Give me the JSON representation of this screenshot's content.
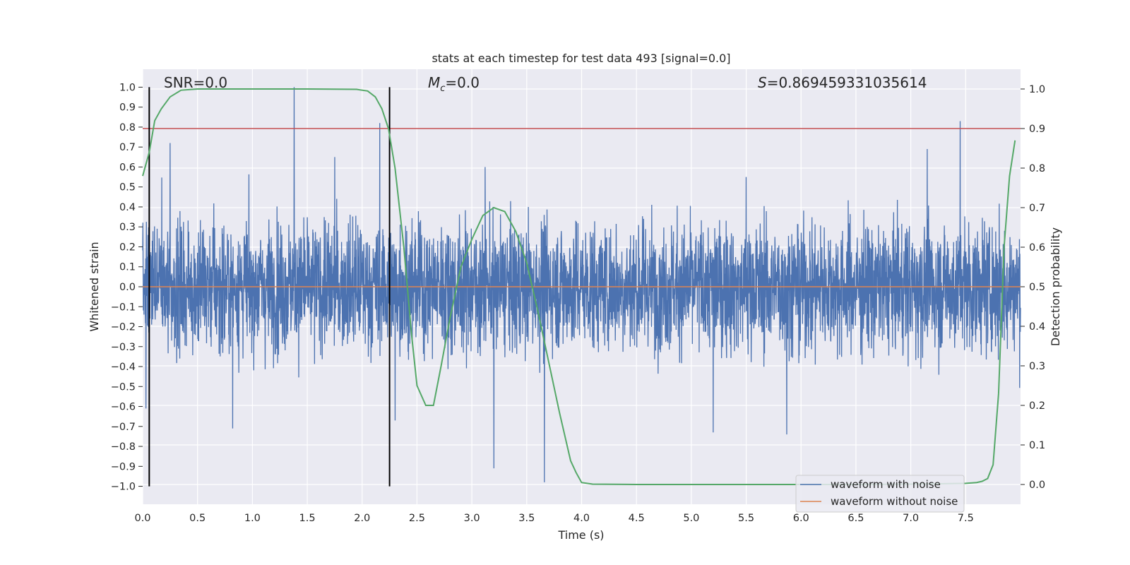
{
  "chart_data": {
    "type": "line",
    "title": "stats at each timestep for test data 493 [signal=0.0]",
    "xlabel": "Time (s)",
    "ylabel": "Whitened strain",
    "ylabel_right": "Detection probability",
    "xlim": [
      0.0,
      8.0
    ],
    "ylim": [
      -1.09,
      1.09
    ],
    "ylim_right": [
      -0.05,
      1.05
    ],
    "x_ticks": [
      0.0,
      0.5,
      1.0,
      1.5,
      2.0,
      2.5,
      3.0,
      3.5,
      4.0,
      4.5,
      5.0,
      5.5,
      6.0,
      6.5,
      7.0,
      7.5
    ],
    "x_tick_labels": [
      "0.0",
      "0.5",
      "1.0",
      "1.5",
      "2.0",
      "2.5",
      "3.0",
      "3.5",
      "4.0",
      "4.5",
      "5.0",
      "5.5",
      "6.0",
      "6.5",
      "7.0",
      "7.5"
    ],
    "y_ticks": [
      -1.0,
      -0.9,
      -0.8,
      -0.7,
      -0.6,
      -0.5,
      -0.4,
      -0.3,
      -0.2,
      -0.1,
      0.0,
      0.1,
      0.2,
      0.3,
      0.4,
      0.5,
      0.6,
      0.7,
      0.8,
      0.9,
      1.0
    ],
    "y_tick_labels": [
      "−1.0",
      "−0.9",
      "−0.8",
      "−0.7",
      "−0.6",
      "−0.5",
      "−0.4",
      "−0.3",
      "−0.2",
      "−0.1",
      "0.0",
      "0.1",
      "0.2",
      "0.3",
      "0.4",
      "0.5",
      "0.6",
      "0.7",
      "0.8",
      "0.9",
      "1.0"
    ],
    "y_ticks_right": [
      0.0,
      0.1,
      0.2,
      0.3,
      0.4,
      0.5,
      0.6,
      0.7,
      0.8,
      0.9,
      1.0
    ],
    "y_tick_labels_right": [
      "0.0",
      "0.1",
      "0.2",
      "0.3",
      "0.4",
      "0.5",
      "0.6",
      "0.7",
      "0.8",
      "0.9",
      "1.0"
    ],
    "grid": true,
    "legend_position": "lower-right",
    "annotations": {
      "snr": "SNR=0.0",
      "mc_symbol": "M",
      "mc_sub": "c",
      "mc_value": "=0.0",
      "s_symbol": "S",
      "s_value": "=0.869459331035614"
    },
    "series": [
      {
        "name": "waveform with noise",
        "color": "#4c72b0",
        "kind": "noise",
        "duration": 8.0,
        "samples": 4000,
        "rms": 0.16,
        "spikes": [
          {
            "x": 1.38,
            "y": 1.0
          },
          {
            "x": 2.16,
            "y": 0.82
          },
          {
            "x": 7.45,
            "y": 0.83
          },
          {
            "x": 0.82,
            "y": -0.71
          },
          {
            "x": 3.2,
            "y": -0.91
          },
          {
            "x": 3.66,
            "y": -0.98
          },
          {
            "x": 0.25,
            "y": 0.72
          },
          {
            "x": 0.03,
            "y": -0.61
          },
          {
            "x": 0.65,
            "y": -0.08
          },
          {
            "x": 3.12,
            "y": 0.6
          },
          {
            "x": 5.5,
            "y": 0.55
          },
          {
            "x": 5.87,
            "y": -0.74
          },
          {
            "x": 5.2,
            "y": -0.73
          },
          {
            "x": 1.75,
            "y": 0.65
          },
          {
            "x": 2.3,
            "y": -0.67
          },
          {
            "x": 7.15,
            "y": 0.69
          }
        ]
      },
      {
        "name": "waveform without noise",
        "color": "#dd8452",
        "kind": "flat",
        "value": 0.0
      }
    ],
    "detection_probability": {
      "color": "#55a868",
      "x": [
        0.0,
        0.06,
        0.11,
        0.17,
        0.25,
        0.35,
        0.5,
        1.0,
        1.5,
        1.95,
        2.05,
        2.12,
        2.18,
        2.24,
        2.3,
        2.38,
        2.45,
        2.5,
        2.58,
        2.65,
        2.72,
        2.8,
        2.9,
        3.0,
        3.1,
        3.2,
        3.3,
        3.4,
        3.5,
        3.6,
        3.7,
        3.8,
        3.9,
        3.95,
        4.0,
        4.1,
        4.5,
        5.0,
        5.5,
        6.0,
        6.5,
        7.0,
        7.3,
        7.5,
        7.6,
        7.65,
        7.7,
        7.75,
        7.8,
        7.85,
        7.9,
        7.95
      ],
      "y": [
        0.78,
        0.84,
        0.92,
        0.95,
        0.98,
        0.997,
        1.0,
        1.0,
        1.0,
        0.999,
        0.995,
        0.98,
        0.95,
        0.9,
        0.8,
        0.6,
        0.38,
        0.25,
        0.2,
        0.2,
        0.3,
        0.42,
        0.55,
        0.62,
        0.68,
        0.7,
        0.69,
        0.64,
        0.56,
        0.44,
        0.31,
        0.18,
        0.06,
        0.03,
        0.005,
        0.001,
        0.0,
        0.0,
        0.0,
        0.0,
        0.0,
        0.001,
        0.002,
        0.003,
        0.005,
        0.008,
        0.015,
        0.05,
        0.23,
        0.6,
        0.78,
        0.87
      ]
    },
    "threshold": {
      "value": 0.9,
      "axis": "right",
      "color": "#c44e52"
    },
    "vertical_markers": [
      0.06,
      2.25
    ],
    "vertical_marker_range": [
      -1.0,
      1.0
    ]
  }
}
